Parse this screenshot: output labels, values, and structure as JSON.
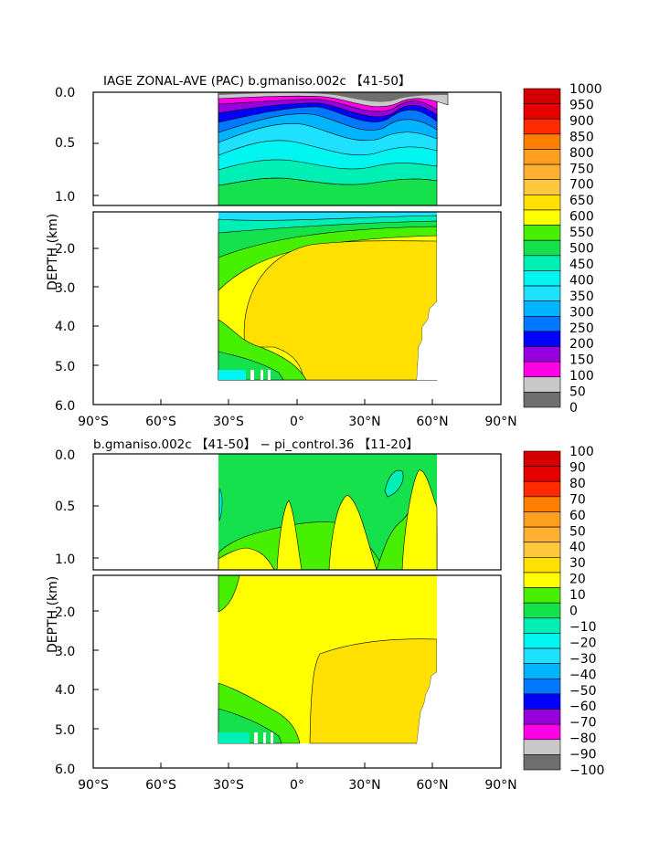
{
  "chart_data": [
    {
      "type": "heatmap",
      "title": "IAGE ZONAL-AVE (PAC) b.gmaniso.002c 【41-50】",
      "xlabel": "",
      "ylabel": "DEPTH (km)",
      "x_ticks": [
        "90°S",
        "60°S",
        "30°S",
        "0°",
        "30°N",
        "60°N",
        "90°N"
      ],
      "y_ticks_upper": [
        "0.0",
        "0.5",
        "1.0"
      ],
      "y_ticks_lower": [
        "2.0",
        "3.0",
        "4.0",
        "5.0",
        "6.0"
      ],
      "xlim": [
        -90,
        90
      ],
      "ylim_km": [
        0,
        6
      ],
      "upper_panel_range_km": [
        0,
        1.1
      ],
      "lower_panel_range_km": [
        1.1,
        6
      ],
      "data_extent": {
        "lat_min": -34,
        "lat_max": 62,
        "depth_max_km": 5.4
      },
      "colorbar_labels": [
        "1000",
        "950",
        "900",
        "850",
        "800",
        "750",
        "700",
        "650",
        "600",
        "550",
        "500",
        "450",
        "400",
        "350",
        "300",
        "250",
        "200",
        "150",
        "100",
        "50",
        "0"
      ],
      "colorbar_colors": [
        "#d40000",
        "#e60000",
        "#ff2a00",
        "#ff7f00",
        "#ff9f20",
        "#ffb030",
        "#ffc83c",
        "#ffe000",
        "#ffff00",
        "#46f000",
        "#14e14b",
        "#00efb4",
        "#00f5f0",
        "#1ee1ff",
        "#00b4ff",
        "#0078ff",
        "#0000ff",
        "#9600dc",
        "#ff00e6",
        "#c8c8c8",
        "#6e6e6e"
      ],
      "approx_values": {
        "surface_layer": "0-150",
        "thermocline_range": "150-500",
        "deep_interior": "650-700",
        "bottom_south": "500-600"
      }
    },
    {
      "type": "heatmap",
      "title": "b.gmaniso.002c 【41-50】 − pi_control.36 【11-20】",
      "xlabel": "",
      "ylabel": "DEPTH (km)",
      "x_ticks": [
        "90°S",
        "60°S",
        "30°S",
        "0°",
        "30°N",
        "60°N",
        "90°N"
      ],
      "y_ticks_upper": [
        "0.0",
        "0.5",
        "1.0"
      ],
      "y_ticks_lower": [
        "2.0",
        "3.0",
        "4.0",
        "5.0",
        "6.0"
      ],
      "xlim": [
        -90,
        90
      ],
      "ylim_km": [
        0,
        6
      ],
      "data_extent": {
        "lat_min": -34,
        "lat_max": 62,
        "depth_max_km": 5.4
      },
      "colorbar_labels": [
        "100",
        "90",
        "80",
        "70",
        "60",
        "50",
        "40",
        "30",
        "20",
        "10",
        "0",
        "−10",
        "−20",
        "−30",
        "−40",
        "−50",
        "−60",
        "−70",
        "−80",
        "−90",
        "−100"
      ],
      "colorbar_colors": [
        "#d40000",
        "#e60000",
        "#ff2a00",
        "#ff7f00",
        "#ff9f20",
        "#ffb030",
        "#ffc83c",
        "#ffe000",
        "#ffff00",
        "#46f000",
        "#14e14b",
        "#00efb4",
        "#00f5f0",
        "#1ee1ff",
        "#00b4ff",
        "#0078ff",
        "#0000ff",
        "#9600dc",
        "#ff00e6",
        "#c8c8c8",
        "#6e6e6e"
      ],
      "approx_values": {
        "upper_ocean": "10-20",
        "interior": "20-30",
        "deep_north": "30-40",
        "bottom_south": "-10-10"
      }
    }
  ]
}
